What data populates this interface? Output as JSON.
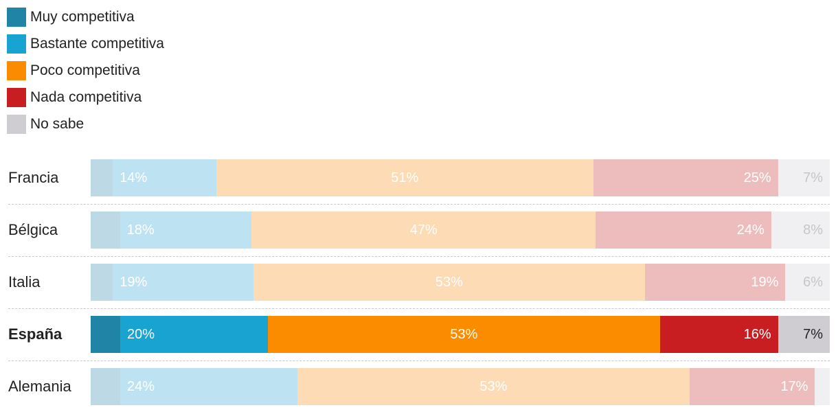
{
  "chart_data": {
    "type": "bar",
    "orientation": "horizontal",
    "stacked": true,
    "normalized_percent": true,
    "legend_position": "top-left",
    "legend": [
      {
        "key": "muy",
        "label": "Muy competitiva",
        "color": "#1f84a6"
      },
      {
        "key": "bastante",
        "label": "Bastante competitiva",
        "color": "#19a3d1"
      },
      {
        "key": "poco",
        "label": "Poco competitiva",
        "color": "#fb8c00"
      },
      {
        "key": "nada",
        "label": "Nada competitiva",
        "color": "#c81e22"
      },
      {
        "key": "no_sabe",
        "label": "No sabe",
        "color": "#cfcdd2"
      }
    ],
    "faded_colors": [
      "#bcd9e5",
      "#bde3f2",
      "#fddbb4",
      "#edbcbd",
      "#f0eff1"
    ],
    "highlight_category": "España",
    "categories": [
      "Francia",
      "Bélgica",
      "Italia",
      "España",
      "Alemania"
    ],
    "series": [
      {
        "name": "Muy competitiva",
        "values": [
          3,
          4,
          3,
          4,
          4
        ],
        "labels": [
          "",
          "",
          "",
          "",
          ""
        ]
      },
      {
        "name": "Bastante competitiva",
        "values": [
          14,
          18,
          19,
          20,
          24
        ],
        "labels": [
          "14%",
          "18%",
          "19%",
          "20%",
          "24%"
        ]
      },
      {
        "name": "Poco competitiva",
        "values": [
          51,
          47,
          53,
          53,
          53
        ],
        "labels": [
          "51%",
          "47%",
          "53%",
          "53%",
          "53%"
        ]
      },
      {
        "name": "Nada competitiva",
        "values": [
          25,
          24,
          19,
          16,
          17
        ],
        "labels": [
          "25%",
          "24%",
          "19%",
          "16%",
          "17%"
        ]
      },
      {
        "name": "No sabe",
        "values": [
          7,
          8,
          6,
          7,
          2
        ],
        "labels": [
          "7%",
          "8%",
          "6%",
          "7%",
          ""
        ]
      }
    ]
  }
}
